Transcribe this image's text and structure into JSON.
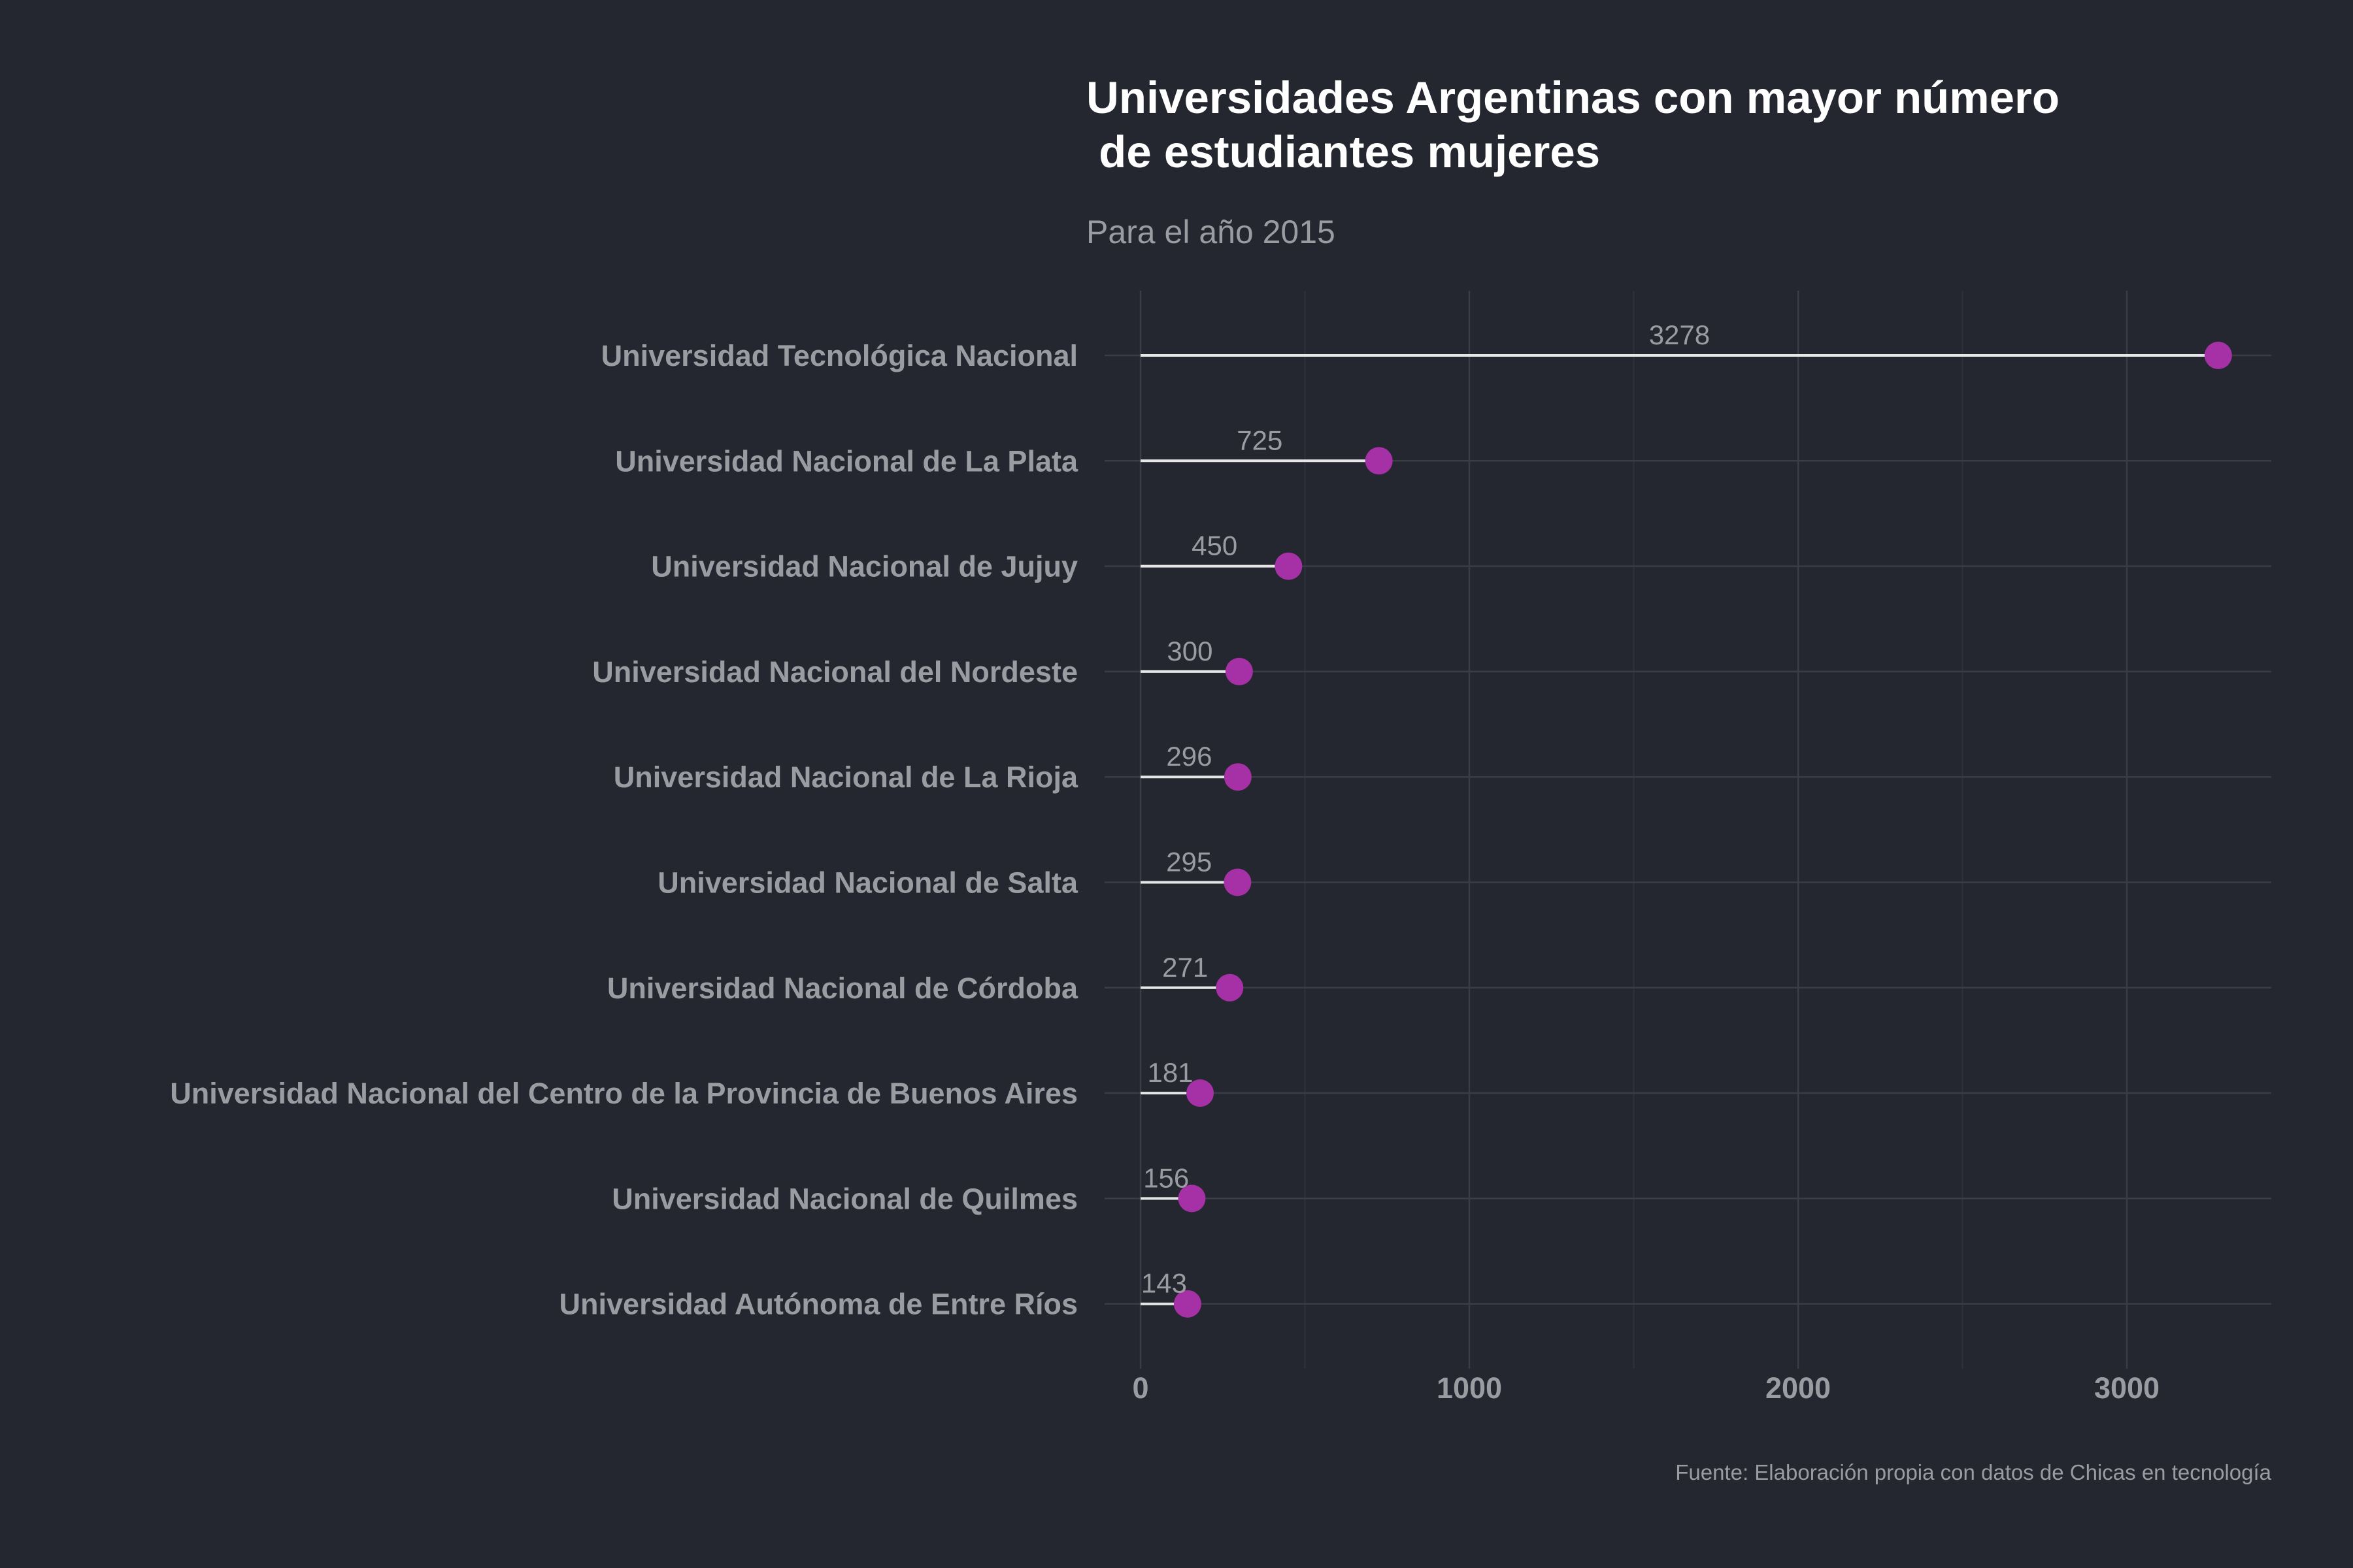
{
  "colors": {
    "background": "#242730",
    "point": "#a631a6",
    "segment": "#e6e6e6",
    "grid_major": "#3a3d45",
    "grid_minor": "#2f323a",
    "text_muted": "#9a9ca2",
    "title": "#ffffff"
  },
  "chart_data": {
    "type": "lollipop",
    "orientation": "horizontal",
    "title_lines": [
      "Universidades Argentinas con mayor número",
      " de estudiantes mujeres"
    ],
    "subtitle": "Para el año 2015",
    "caption": "Fuente: Elaboración propia con datos de Chicas en tecnología",
    "xlabel": "",
    "ylabel": "",
    "xlim": [
      0,
      3450
    ],
    "x_ticks": [
      0,
      1000,
      2000,
      3000
    ],
    "x_tick_labels": [
      "0",
      "1000",
      "2000",
      "3000"
    ],
    "x_minor_ticks": [
      500,
      1500,
      2500
    ],
    "grid": true,
    "legend": "none",
    "categories": [
      "Universidad Tecnológica Nacional",
      "Universidad Nacional de La Plata",
      "Universidad Nacional de Jujuy",
      "Universidad Nacional del Nordeste",
      "Universidad Nacional de La Rioja",
      "Universidad Nacional de Salta",
      "Universidad Nacional de Córdoba",
      "Universidad Nacional del Centro de la Provincia de Buenos Aires",
      "Universidad Nacional de Quilmes",
      "Universidad Autónoma de Entre Ríos"
    ],
    "values": [
      3278,
      725,
      450,
      300,
      296,
      295,
      271,
      181,
      156,
      143
    ],
    "value_labels": [
      "3278",
      "725",
      "450",
      "300",
      "296",
      "295",
      "271",
      "181",
      "156",
      "143"
    ]
  }
}
